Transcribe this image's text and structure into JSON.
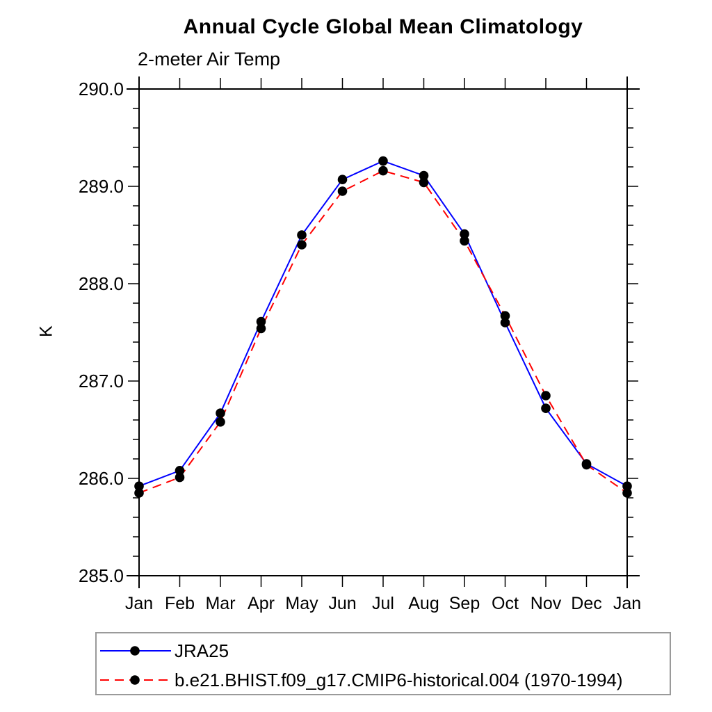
{
  "chart_data": {
    "type": "line",
    "title": "Annual Cycle Global Mean Climatology",
    "subtitle": "2-meter Air Temp",
    "ylabel": "K",
    "categories": [
      "Jan",
      "Feb",
      "Mar",
      "Apr",
      "May",
      "Jun",
      "Jul",
      "Aug",
      "Sep",
      "Oct",
      "Nov",
      "Dec",
      "Jan"
    ],
    "ylim": [
      285.0,
      290.0
    ],
    "ytick_major": [
      285.0,
      286.0,
      287.0,
      288.0,
      289.0,
      290.0
    ],
    "ytick_minor_interval": 0.2,
    "ytick_label_format": "one-decimal",
    "grid": false,
    "legend_position": "below-left",
    "series": [
      {
        "name": "JRA25",
        "color": "#0000ff",
        "style": "solid",
        "marker": "filled-circle",
        "marker_color": "#000000",
        "values": [
          285.92,
          286.08,
          286.67,
          287.61,
          288.5,
          289.07,
          289.26,
          289.11,
          288.51,
          287.6,
          286.72,
          286.15,
          285.92
        ]
      },
      {
        "name": "b.e21.BHIST.f09_g17.CMIP6-historical.004 (1970-1994)",
        "color": "#ff0000",
        "style": "dashed",
        "marker": "filled-circle",
        "marker_color": "#000000",
        "values": [
          285.85,
          286.01,
          286.58,
          287.54,
          288.4,
          288.95,
          289.16,
          289.04,
          288.44,
          287.67,
          286.85,
          286.14,
          285.85
        ]
      }
    ]
  },
  "colors": {
    "axis": "#000000",
    "tick": "#000000",
    "text": "#000000",
    "legend_border": "#9a9a9a",
    "background": "#ffffff"
  }
}
